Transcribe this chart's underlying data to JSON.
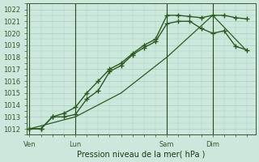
{
  "xlabel": "Pression niveau de la mer( hPa )",
  "bg_color": "#cce8dc",
  "grid_color": "#a8d0be",
  "line_color": "#2d5a20",
  "ylim": [
    1011.5,
    1022.5
  ],
  "yticks": [
    1012,
    1013,
    1014,
    1015,
    1016,
    1017,
    1018,
    1019,
    1020,
    1021,
    1022
  ],
  "xtick_labels": [
    "Ven",
    "Lun",
    "Sam",
    "Dim"
  ],
  "xtick_positions": [
    0,
    16,
    48,
    64
  ],
  "vline_positions": [
    0,
    16,
    48,
    64
  ],
  "xlim": [
    -1,
    79
  ],
  "line1_x": [
    0,
    4,
    8,
    12,
    16,
    20,
    24,
    28,
    32,
    36,
    40,
    44,
    48,
    52,
    56,
    60,
    64,
    68,
    72,
    76
  ],
  "line1_y": [
    1012,
    1012,
    1013,
    1013,
    1013.2,
    1014.5,
    1015.2,
    1016.8,
    1017.3,
    1018.2,
    1018.8,
    1019.3,
    1020.8,
    1021.0,
    1021.0,
    1020.4,
    1020.0,
    1020.2,
    1018.9,
    1018.6
  ],
  "line2_x": [
    0,
    4,
    8,
    12,
    16,
    20,
    24,
    28,
    32,
    36,
    40,
    44,
    48,
    52,
    56,
    60,
    64,
    68,
    72,
    76
  ],
  "line2_y": [
    1012,
    1012,
    1013,
    1013.3,
    1013.8,
    1015.0,
    1016.0,
    1017.0,
    1017.5,
    1018.3,
    1019.0,
    1019.5,
    1021.5,
    1021.5,
    1021.4,
    1021.3,
    1021.5,
    1021.5,
    1021.3,
    1021.2
  ],
  "line3_x": [
    0,
    16,
    32,
    48,
    64,
    76
  ],
  "line3_y": [
    1012.0,
    1013.0,
    1015.0,
    1018.0,
    1021.5,
    1018.5
  ]
}
